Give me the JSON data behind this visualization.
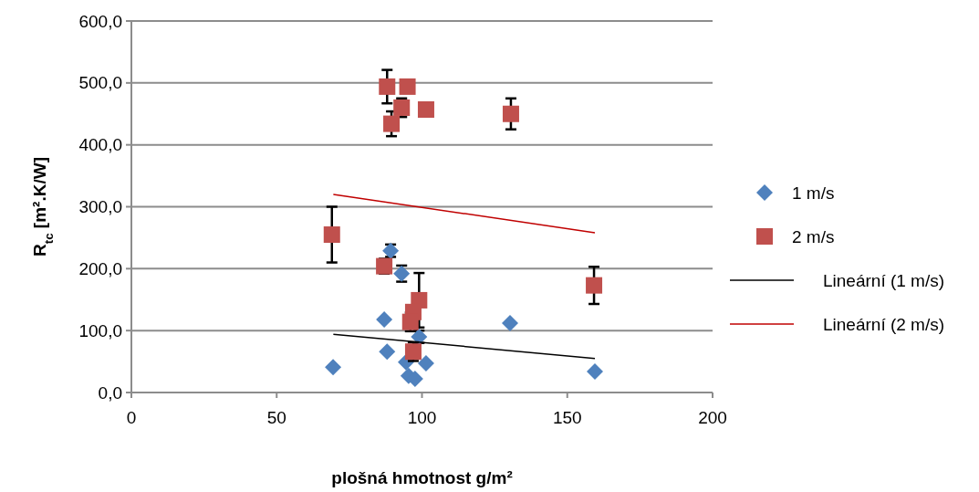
{
  "chart_data": {
    "type": "scatter",
    "xlabel": "plošná hmotnost g/m²",
    "ylabel": "R$_{tc}$ [m².K/W]",
    "xlim": [
      0,
      200
    ],
    "xticks": [
      0,
      50,
      100,
      150,
      200
    ],
    "ylim": [
      0,
      600
    ],
    "yticks": [
      {
        "value": 0,
        "label": "0,0"
      },
      {
        "value": 100,
        "label": "100,0"
      },
      {
        "value": 200,
        "label": "200,0"
      },
      {
        "value": 300,
        "label": "300,0"
      },
      {
        "value": 400,
        "label": "400,0"
      },
      {
        "value": 500,
        "label": "500,0"
      },
      {
        "value": 600,
        "label": "600,0"
      }
    ],
    "grid": "y",
    "legend": "right",
    "series": [
      {
        "name": "1 m/s",
        "color": "#4f81bd",
        "marker": "diamond",
        "x": [
          69.4,
          87,
          88,
          89.2,
          93,
          94.5,
          95.4,
          97.6,
          99,
          101.4,
          130.3,
          159.5
        ],
        "values": [
          41,
          118,
          66,
          229,
          192,
          49,
          27,
          22,
          90,
          47,
          112,
          34
        ],
        "errors": [
          null,
          null,
          null,
          10,
          13,
          null,
          null,
          null,
          10,
          null,
          null,
          null
        ]
      },
      {
        "name": "2 m/s",
        "color": "#c0504d",
        "marker": "square",
        "x": [
          69,
          87,
          88,
          95,
          93,
          89.5,
          101.4,
          130.6,
          159.2,
          99,
          97,
          96,
          97
        ],
        "values": [
          255,
          204,
          494,
          494,
          460,
          434,
          457,
          450,
          173,
          149,
          130,
          114,
          66
        ],
        "errors": [
          45,
          12,
          27,
          null,
          15,
          20,
          null,
          25,
          30,
          44,
          null,
          15,
          15
        ]
      },
      {
        "name": "Lineární (1 m/s)",
        "type": "line",
        "color": "#000000",
        "marker": "none",
        "x": [
          69.5,
          159.5
        ],
        "values": [
          94,
          55
        ]
      },
      {
        "name": "Lineární (2 m/s)",
        "type": "line",
        "color": "#c00000",
        "marker": "none",
        "x": [
          69.5,
          159.5
        ],
        "values": [
          320,
          258
        ]
      }
    ]
  }
}
